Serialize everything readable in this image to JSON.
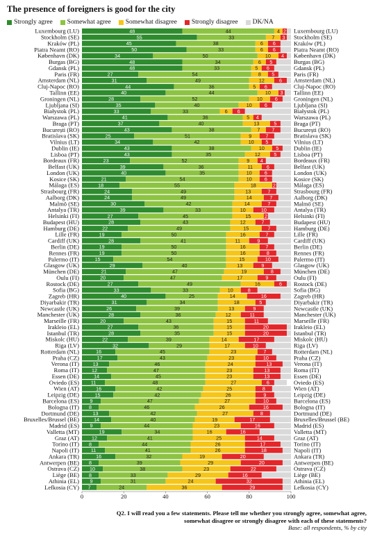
{
  "title": "The presence of foreigners is good for the city",
  "footnote": {
    "question_line1": "Q2. I will read you a few statements. Please tell me whether you strongly agree, somewhat agree,",
    "question_line2": "somewhat disagree or strongly disagree with each of these statements?",
    "base": "Base: all respondents, % by city"
  },
  "chart_data": {
    "type": "bar",
    "orientation": "horizontal",
    "stacked": true,
    "xlim": [
      0,
      100
    ],
    "x_ticks": [
      "0",
      "20",
      "40",
      "60",
      "80",
      "100"
    ],
    "grid": false,
    "legend_position": "top",
    "colors": [
      "#2e8b2e",
      "#8dc342",
      "#f5c518",
      "#e3262a",
      "#d9d9d9"
    ],
    "series_names": [
      "Strongly agree",
      "Somewhat agree",
      "Somewhat disagree",
      "Strongly disagree",
      "DK/NA"
    ],
    "categories": [
      "Luxembourg (LU)",
      "Stockholm (SE)",
      "Kraków (PL)",
      "Piatra Neamt (RO)",
      "København (DK)",
      "Burgas (BG)",
      "Gdansk (PL)",
      "Paris (FR)",
      "Amsterdam (NL)",
      "Cluj-Napoc (RO)",
      "Tallinn (EE)",
      "Groningen (NL)",
      "Ljubljana (SI)",
      "Białystok (PL)",
      "Warszawa (PL)",
      "Braga (PT)",
      "București (RO)",
      "Bratislava (SK)",
      "Vilnius (LT)",
      "Dublin (IE)",
      "Lisboa (PT)",
      "Bordeaux (FR)",
      "Belfast (UK)",
      "London (UK)",
      "Kosice (SK)",
      "Málaga (ES)",
      "Strasbourg (FR)",
      "Aalborg (DK)",
      "Malmö (SE)",
      "Antalya (TR)",
      "Helsinki (FI)",
      "Budapest (HU)",
      "Hamburg (DE)",
      "Lille (FR)",
      "Cardiff (UK)",
      "Berlin (DE)",
      "Rennes (FR)",
      "Palermo (IT)",
      "Glasgow (UK)",
      "München (DE)",
      "Oulu (FI)",
      "Rostock (DE)",
      "Sofia (BG)",
      "Zagreb (HR)",
      "Diyarbakir (TR)",
      "Newcastle (UK)",
      "Manchester (UK)",
      "Marseille (FR)",
      "Irakleio (EL)",
      "Istanbul (TR)",
      "Miskolc (HU)",
      "Riga (LV)",
      "Rotterdam (NL)",
      "Praha (CZ)",
      "Verona (IT)",
      "Roma (IT)",
      "Essen (DE)",
      "Oviedo (ES)",
      "Wien (AT)",
      "Leipzig (DE)",
      "Barcelona (ES)",
      "Bologna (IT)",
      "Dortmund (DE)",
      "Bruxelles/Brussel (BE)",
      "Madrid (ES)",
      "Valletta (MT)",
      "Graz (AT)",
      "Torino (IT)",
      "Napoli (IT)",
      "Ankara (TR)",
      "Antwerpen (BE)",
      "Ostrava (CZ)",
      "Liège (BE)",
      "Athinia (EL)",
      "Lefkosia (CY)"
    ],
    "series": [
      {
        "name": "Strongly agree",
        "values": [
          48,
          55,
          45,
          50,
          34,
          48,
          48,
          27,
          31,
          44,
          40,
          28,
          35,
          33,
          41,
          37,
          43,
          25,
          34,
          43,
          43,
          23,
          39,
          40,
          21,
          18,
          24,
          24,
          30,
          39,
          27,
          28,
          22,
          19,
          28,
          19,
          19,
          15,
          29,
          21,
          20,
          27,
          33,
          40,
          31,
          26,
          28,
          20,
          27,
          28,
          22,
          32,
          16,
          17,
          13,
          12,
          14,
          11,
          16,
          15,
          9,
          8,
          13,
          14,
          9,
          19,
          12,
          8,
          11,
          16,
          8,
          10,
          8,
          9,
          7
        ]
      },
      {
        "name": "Somewhat agree",
        "values": [
          44,
          33,
          38,
          33,
          50,
          34,
          33,
          54,
          49,
          36,
          44,
          52,
          40,
          33,
          36,
          40,
          38,
          51,
          42,
          38,
          35,
          52,
          36,
          35,
          54,
          55,
          49,
          49,
          42,
          33,
          45,
          43,
          49,
          50,
          41,
          50,
          50,
          54,
          40,
          47,
          47,
          49,
          33,
          25,
          34,
          39,
          36,
          43,
          36,
          35,
          39,
          29,
          45,
          43,
          46,
          47,
          45,
          48,
          42,
          42,
          47,
          46,
          42,
          40,
          44,
          34,
          41,
          44,
          41,
          32,
          39,
          38,
          33,
          31,
          24
        ]
      },
      {
        "name": "Somewhat disagree",
        "values": [
          4,
          7,
          6,
          6,
          10,
          6,
          5,
          8,
          12,
          5,
          10,
          10,
          10,
          6,
          5,
          13,
          7,
          9,
          10,
          10,
          12,
          9,
          11,
          10,
          10,
          18,
          13,
          14,
          14,
          10,
          15,
          12,
          15,
          16,
          11,
          16,
          16,
          15,
          13,
          19,
          17,
          16,
          10,
          14,
          18,
          13,
          12,
          15,
          15,
          15,
          14,
          17,
          23,
          23,
          24,
          23,
          23,
          27,
          25,
          26,
          27,
          26,
          27,
          19,
          23,
          16,
          25,
          26,
          26,
          19,
          29,
          23,
          29,
          24,
          36
        ]
      },
      {
        "name": "Strongly disagree",
        "values": [
          2,
          3,
          6,
          6,
          4,
          5,
          6,
          5,
          6,
          6,
          3,
          6,
          6,
          6,
          4,
          5,
          7,
          7,
          5,
          5,
          5,
          4,
          6,
          6,
          6,
          2,
          7,
          7,
          7,
          10,
          2,
          7,
          7,
          7,
          9,
          7,
          8,
          10,
          9,
          8,
          9,
          6,
          8,
          16,
          5,
          9,
          11,
          11,
          20,
          20,
          17,
          10,
          7,
          10,
          13,
          13,
          13,
          6,
          8,
          9,
          10,
          16,
          8,
          17,
          16,
          16,
          14,
          17,
          18,
          20,
          20,
          22,
          16,
          32,
          29
        ]
      },
      {
        "name": "DK/NA",
        "values": [
          2,
          2,
          5,
          5,
          2,
          7,
          8,
          6,
          2,
          9,
          3,
          4,
          9,
          22,
          14,
          5,
          5,
          8,
          9,
          4,
          5,
          12,
          8,
          9,
          9,
          7,
          7,
          6,
          7,
          8,
          11,
          10,
          7,
          8,
          11,
          8,
          7,
          6,
          9,
          5,
          7,
          2,
          16,
          5,
          12,
          13,
          13,
          11,
          2,
          2,
          8,
          12,
          9,
          7,
          4,
          5,
          5,
          6,
          9,
          8,
          7,
          4,
          10,
          10,
          8,
          15,
          8,
          5,
          4,
          13,
          4,
          7,
          14,
          4,
          4
        ]
      }
    ]
  }
}
